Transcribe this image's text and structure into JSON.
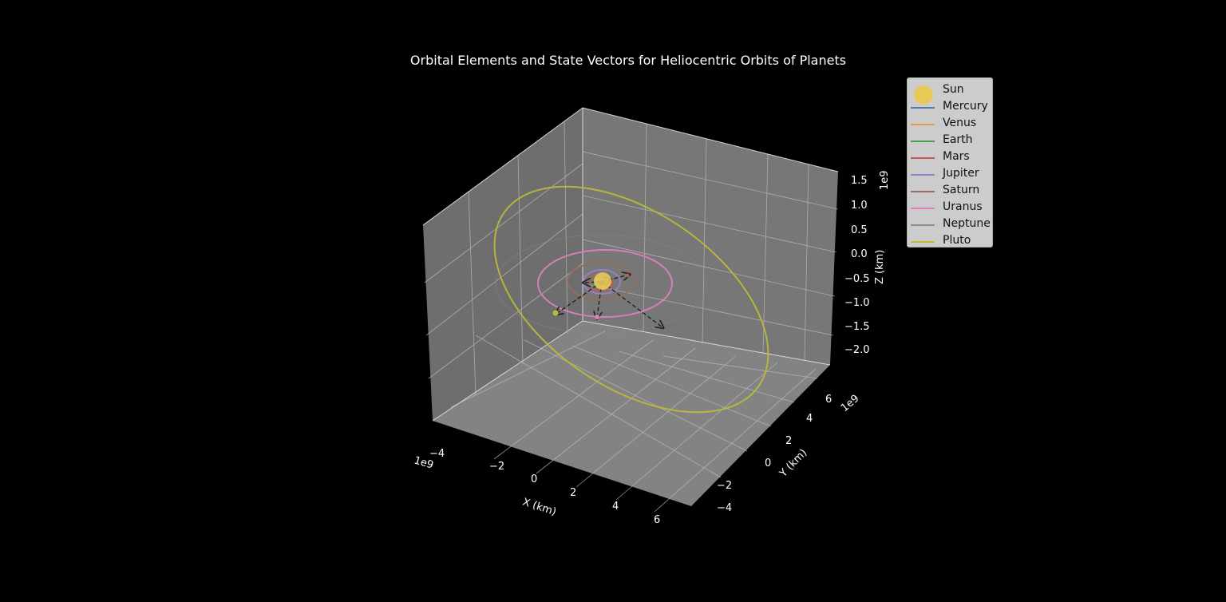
{
  "chart_data": {
    "type": "3d-line",
    "title": "Orbital Elements and State Vectors for Heliocentric Orbits of Planets",
    "xlabel": "X (km)",
    "ylabel": "Y (km)",
    "zlabel": "Z (km)",
    "x_ticks": [
      "−4",
      "−2",
      "0",
      "2",
      "4",
      "6"
    ],
    "y_ticks": [
      "−4",
      "−2",
      "0",
      "2",
      "4",
      "6"
    ],
    "z_ticks": [
      "1.5",
      "1.0",
      "0.5",
      "0.0",
      "−0.5",
      "−1.0",
      "−1.5",
      "−2.0"
    ],
    "x_offset": "1e9",
    "y_offset": "1e9",
    "z_offset": "1e9",
    "grid": true,
    "background": "#000000",
    "pane_color": "#7f7f7f",
    "legend_position": "upper-right outside",
    "series": [
      {
        "name": "Sun",
        "color": "#e7c95a",
        "marker": "circle"
      },
      {
        "name": "Mercury",
        "color": "#4a7fb0"
      },
      {
        "name": "Venus",
        "color": "#e89a52"
      },
      {
        "name": "Earth",
        "color": "#4f9c4f"
      },
      {
        "name": "Mars",
        "color": "#cc5555"
      },
      {
        "name": "Jupiter",
        "color": "#9c7fc2"
      },
      {
        "name": "Saturn",
        "color": "#9a6b5c"
      },
      {
        "name": "Uranus",
        "color": "#e07fc2"
      },
      {
        "name": "Neptune",
        "color": "#8c8c8c"
      },
      {
        "name": "Pluto",
        "color": "#bdbd35"
      }
    ]
  }
}
